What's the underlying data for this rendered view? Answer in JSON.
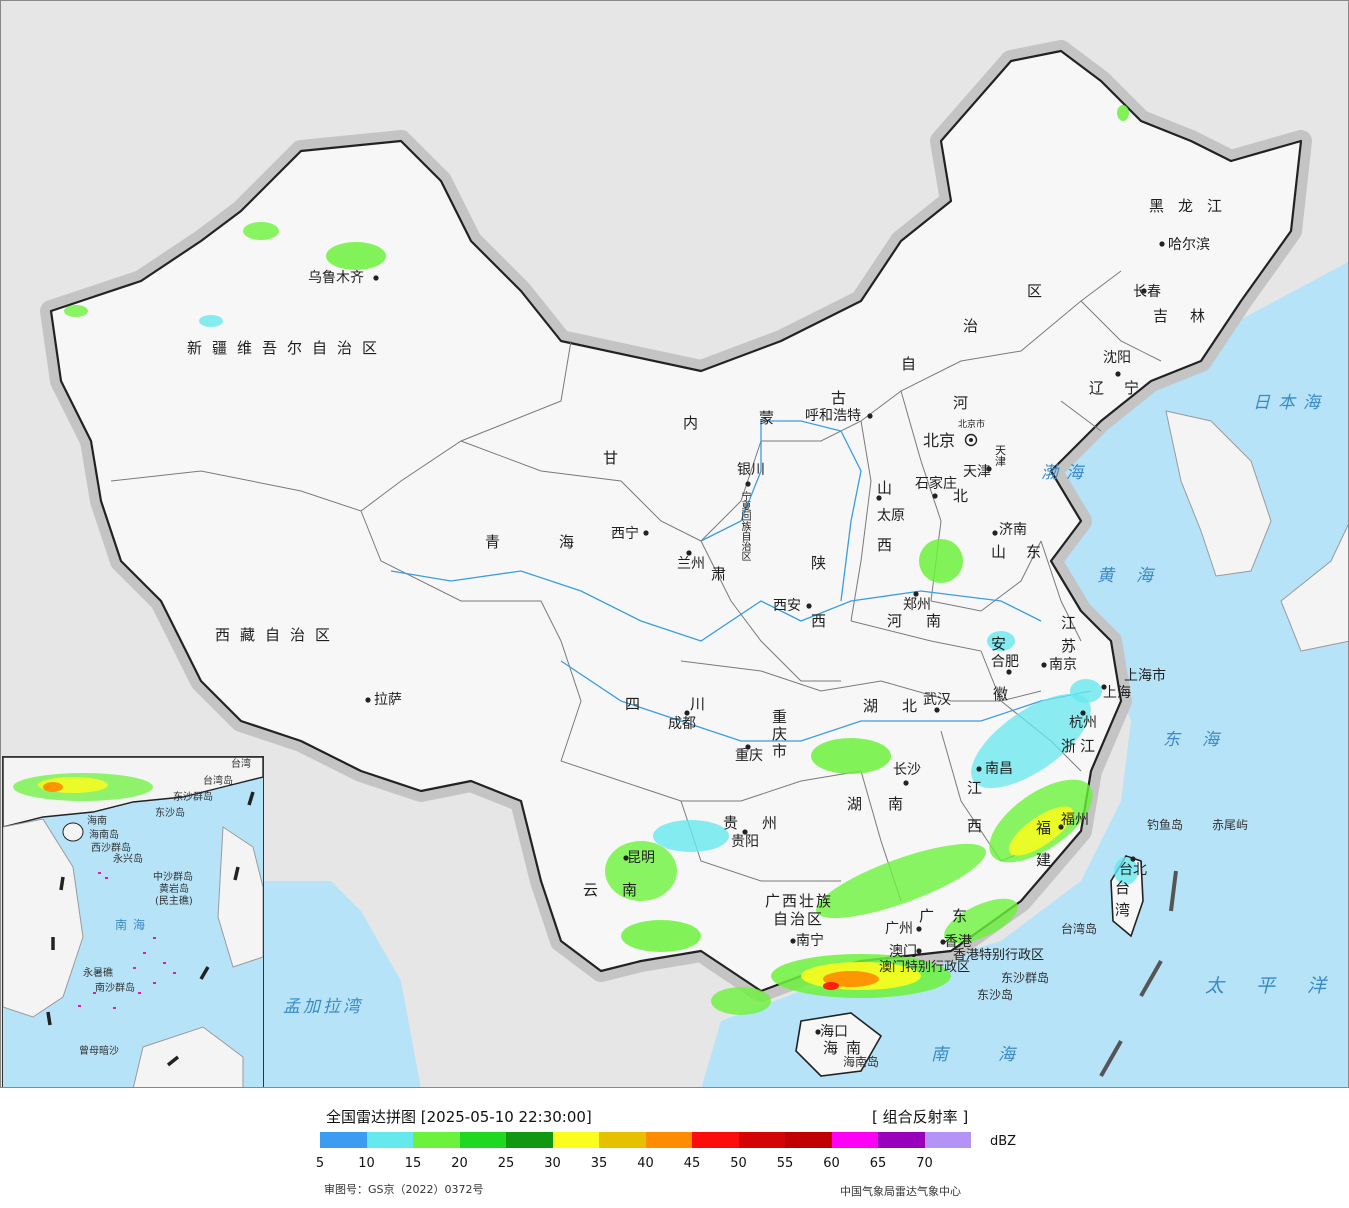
{
  "provinces": [
    {
      "id": "xinjiang",
      "text": "新疆维吾尔自治区"
    },
    {
      "id": "xizang",
      "text": "西藏自治区"
    },
    {
      "id": "qinghai-1",
      "text": "青"
    },
    {
      "id": "qinghai-2",
      "text": "海"
    },
    {
      "id": "gansu-1",
      "text": "甘"
    },
    {
      "id": "gansu-2",
      "text": "肃"
    },
    {
      "id": "neimenggu-1",
      "text": "内"
    },
    {
      "id": "neimenggu-2",
      "text": "蒙"
    },
    {
      "id": "neimenggu-3",
      "text": "古"
    },
    {
      "id": "neimenggu-4",
      "text": "自"
    },
    {
      "id": "neimenggu-5",
      "text": "治"
    },
    {
      "id": "neimenggu-6",
      "text": "区"
    },
    {
      "id": "heilongjiang",
      "text": "黑龙江"
    },
    {
      "id": "jilin",
      "text": "吉林"
    },
    {
      "id": "liaoning",
      "text": "辽宁"
    },
    {
      "id": "hebei-1",
      "text": "河"
    },
    {
      "id": "hebei-2",
      "text": "北"
    },
    {
      "id": "shanxi-1",
      "text": "山"
    },
    {
      "id": "shanxi-2",
      "text": "西"
    },
    {
      "id": "shaanxi-1",
      "text": "陕"
    },
    {
      "id": "shaanxi-2",
      "text": "西"
    },
    {
      "id": "shandong",
      "text": "山东"
    },
    {
      "id": "henan",
      "text": "河南"
    },
    {
      "id": "jiangsu-1",
      "text": "江"
    },
    {
      "id": "jiangsu-2",
      "text": "苏"
    },
    {
      "id": "anhui-1",
      "text": "安"
    },
    {
      "id": "anhui-2",
      "text": "徽"
    },
    {
      "id": "sichuan",
      "text": "四川"
    },
    {
      "id": "hubei",
      "text": "湖北"
    },
    {
      "id": "chongqing",
      "text": "重庆市"
    },
    {
      "id": "zhejiang",
      "text": "浙江"
    },
    {
      "id": "hunan",
      "text": "湖南"
    },
    {
      "id": "jiangxi-1",
      "text": "江"
    },
    {
      "id": "jiangxi-2",
      "text": "西"
    },
    {
      "id": "guizhou",
      "text": "贵州"
    },
    {
      "id": "fujian-1",
      "text": "福"
    },
    {
      "id": "fujian-2",
      "text": "建"
    },
    {
      "id": "yunnan",
      "text": "云南"
    },
    {
      "id": "guangxi-1",
      "text": "广西壮族"
    },
    {
      "id": "guangxi-2",
      "text": "自治区"
    },
    {
      "id": "guangdong",
      "text": "广东"
    },
    {
      "id": "taiwan-1",
      "text": "台"
    },
    {
      "id": "taiwan-2",
      "text": "湾"
    },
    {
      "id": "hainan",
      "text": "海南"
    },
    {
      "id": "ningxia",
      "text": "宁夏回族自治区"
    },
    {
      "id": "shanghai",
      "text": "上海市"
    },
    {
      "id": "tianjin",
      "text": "天津"
    },
    {
      "id": "hk",
      "text": "香港特别行政区"
    },
    {
      "id": "macau",
      "text": "澳门特别行政区"
    }
  ],
  "cities": [
    {
      "id": "urumqi",
      "text": "乌鲁木齐"
    },
    {
      "id": "lhasa",
      "text": "拉萨"
    },
    {
      "id": "xining",
      "text": "西宁"
    },
    {
      "id": "lanzhou",
      "text": "兰州"
    },
    {
      "id": "yinchuan",
      "text": "银川"
    },
    {
      "id": "hohhot",
      "text": "呼和浩特"
    },
    {
      "id": "beijing",
      "text": "北京"
    },
    {
      "id": "beijing-city",
      "text": "北京市"
    },
    {
      "id": "tianjin-city",
      "text": "天津"
    },
    {
      "id": "shijiazhuang",
      "text": "石家庄"
    },
    {
      "id": "taiyuan",
      "text": "太原"
    },
    {
      "id": "jinan",
      "text": "济南"
    },
    {
      "id": "zhengzhou",
      "text": "郑州"
    },
    {
      "id": "xian",
      "text": "西安"
    },
    {
      "id": "hefei",
      "text": "合肥"
    },
    {
      "id": "nanjing",
      "text": "南京"
    },
    {
      "id": "shanghai-city",
      "text": "上海"
    },
    {
      "id": "hangzhou",
      "text": "杭州"
    },
    {
      "id": "wuhan",
      "text": "武汉"
    },
    {
      "id": "chengdu",
      "text": "成都"
    },
    {
      "id": "chongqing-city",
      "text": "重庆"
    },
    {
      "id": "changsha",
      "text": "长沙"
    },
    {
      "id": "nanchang",
      "text": "南昌"
    },
    {
      "id": "guiyang",
      "text": "贵阳"
    },
    {
      "id": "kunming",
      "text": "昆明"
    },
    {
      "id": "nanning",
      "text": "南宁"
    },
    {
      "id": "guangzhou",
      "text": "广州"
    },
    {
      "id": "hongkong",
      "text": "香港"
    },
    {
      "id": "macao-city",
      "text": "澳门"
    },
    {
      "id": "fuzhou",
      "text": "福州"
    },
    {
      "id": "taipei",
      "text": "台北"
    },
    {
      "id": "haikou",
      "text": "海口"
    },
    {
      "id": "harbin",
      "text": "哈尔滨"
    },
    {
      "id": "changchun",
      "text": "长春"
    },
    {
      "id": "shenyang",
      "text": "沈阳"
    }
  ],
  "seas": [
    {
      "id": "japan-sea",
      "text": "日本海"
    },
    {
      "id": "bohai",
      "text": "渤海"
    },
    {
      "id": "yellow-sea",
      "text": "黄海"
    },
    {
      "id": "east-sea",
      "text": "东海"
    },
    {
      "id": "pacific",
      "text": "太平洋"
    },
    {
      "id": "south-sea",
      "text": "南海"
    },
    {
      "id": "bengal",
      "text": "孟加拉湾"
    }
  ],
  "islands": [
    {
      "id": "diaoyu",
      "text": "钓鱼岛"
    },
    {
      "id": "chiwei",
      "text": "赤尾屿"
    },
    {
      "id": "taiwan-island",
      "text": "台湾岛"
    },
    {
      "id": "dongsha-qundao",
      "text": "东沙群岛"
    },
    {
      "id": "dongsha-dao",
      "text": "东沙岛"
    },
    {
      "id": "hainan-island",
      "text": "海南岛"
    }
  ],
  "inset": {
    "labels": [
      {
        "id": "i-taiwan",
        "text": "台湾"
      },
      {
        "id": "i-taiwan-island",
        "text": "台湾岛"
      },
      {
        "id": "i-dongsha",
        "text": "东沙群岛"
      },
      {
        "id": "i-dongsha-dao",
        "text": "东沙岛"
      },
      {
        "id": "i-hainan",
        "text": "海南"
      },
      {
        "id": "i-hainan-island",
        "text": "海南岛"
      },
      {
        "id": "i-xisha",
        "text": "西沙群岛"
      },
      {
        "id": "i-yongxing",
        "text": "永兴岛"
      },
      {
        "id": "i-zhongsha",
        "text": "中沙群岛"
      },
      {
        "id": "i-huangyan",
        "text": "黄岩岛"
      },
      {
        "id": "i-minzhu",
        "text": "(民主礁)"
      },
      {
        "id": "i-sea",
        "text": "南海"
      },
      {
        "id": "i-yongshu",
        "text": "永暑礁"
      },
      {
        "id": "i-nansha",
        "text": "南沙群岛"
      },
      {
        "id": "i-zengmu",
        "text": "曾母暗沙"
      }
    ]
  },
  "legend": {
    "title": "全国雷达拼图 [2025-05-10 22:30:00]",
    "product": "[ 组合反射率 ]",
    "unit": "dBZ",
    "colors": [
      "#3c9df0",
      "#66e8ef",
      "#6cf23c",
      "#1fd81f",
      "#119711",
      "#fbfd1e",
      "#e6c100",
      "#ff8b00",
      "#fd0c0c",
      "#d40404",
      "#c00000",
      "#fe00f4",
      "#9800bc",
      "#b493f6"
    ],
    "ticks": [
      "5",
      "10",
      "15",
      "20",
      "25",
      "30",
      "35",
      "40",
      "45",
      "50",
      "55",
      "60",
      "65",
      "70"
    ],
    "review_no": "审图号：GS京（2022）0372号",
    "credit": "中国气象局雷达气象中心"
  }
}
